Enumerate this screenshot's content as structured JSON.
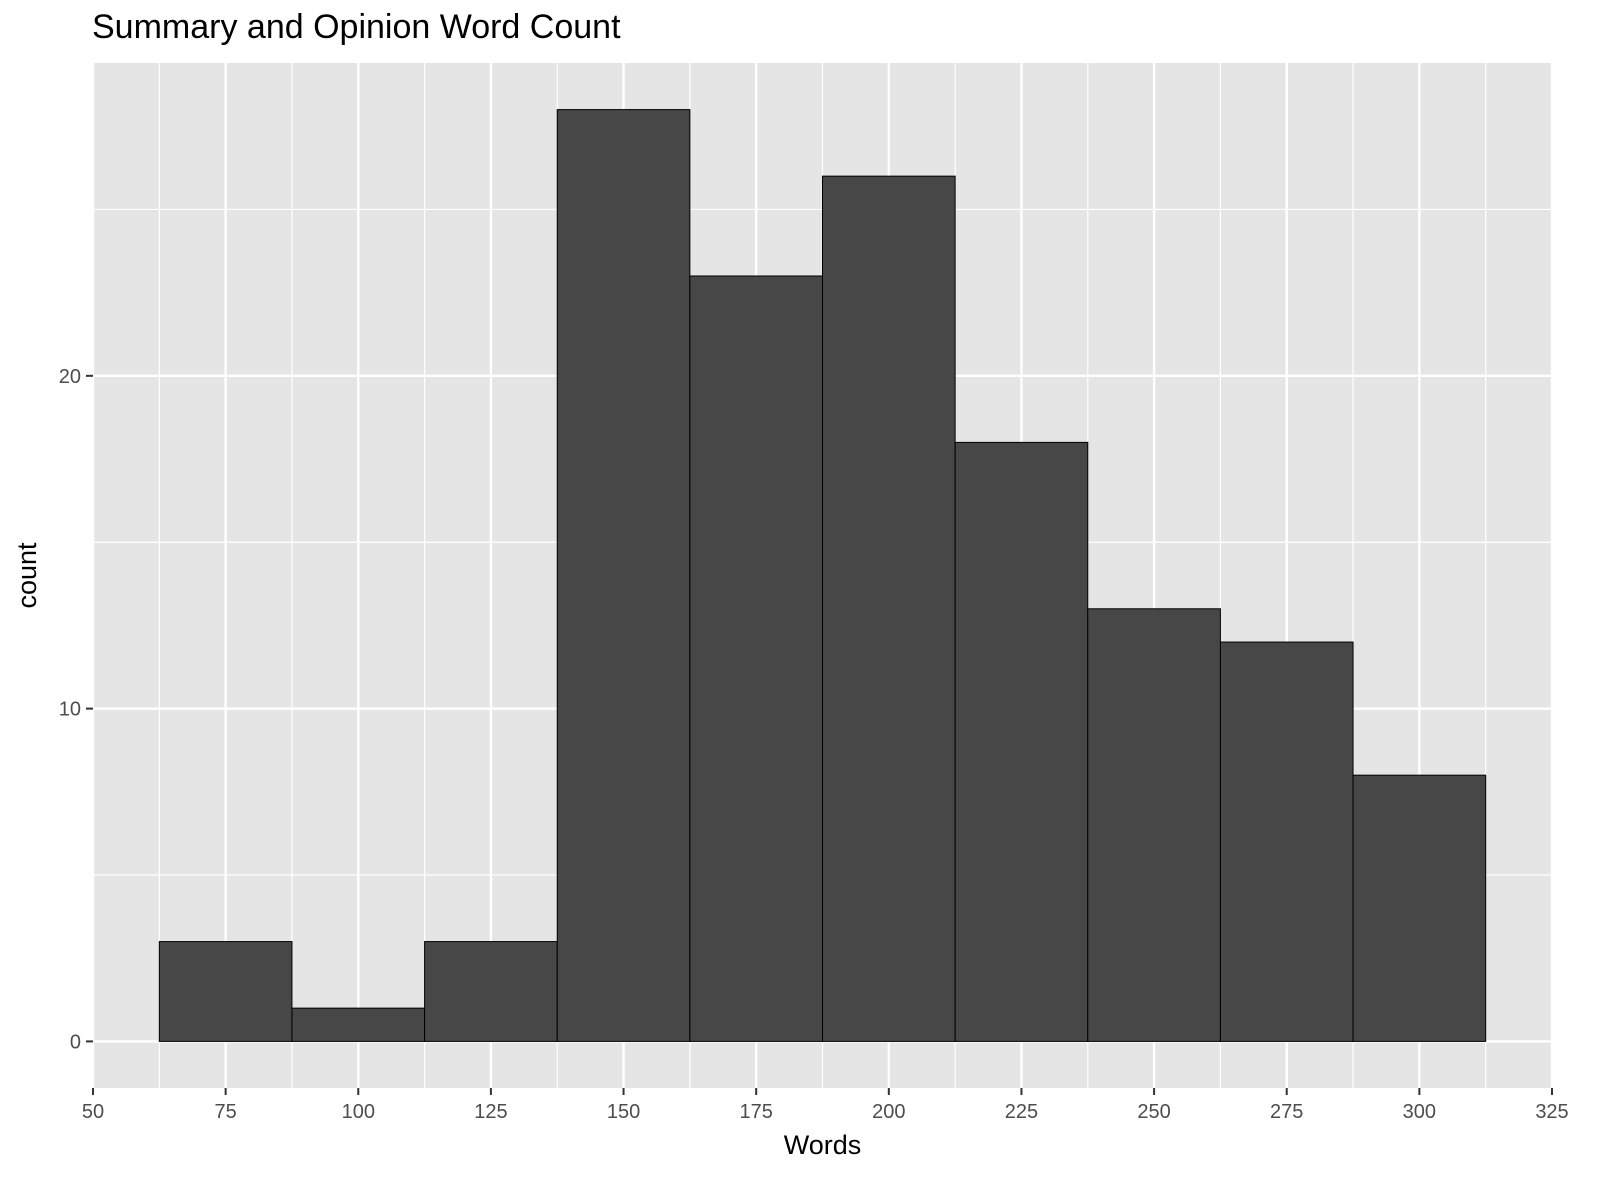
{
  "chart_data": {
    "type": "bar",
    "title": "Summary and Opinion Word Count",
    "xlabel": "Words",
    "ylabel": "count",
    "bin_width": 25,
    "bins": [
      {
        "x_start": 62.5,
        "x_end": 87.5,
        "count": 3
      },
      {
        "x_start": 87.5,
        "x_end": 112.5,
        "count": 1
      },
      {
        "x_start": 112.5,
        "x_end": 137.5,
        "count": 3
      },
      {
        "x_start": 137.5,
        "x_end": 162.5,
        "count": 28
      },
      {
        "x_start": 162.5,
        "x_end": 187.5,
        "count": 23
      },
      {
        "x_start": 187.5,
        "x_end": 212.5,
        "count": 26
      },
      {
        "x_start": 212.5,
        "x_end": 237.5,
        "count": 18
      },
      {
        "x_start": 237.5,
        "x_end": 262.5,
        "count": 13
      },
      {
        "x_start": 262.5,
        "x_end": 287.5,
        "count": 12
      },
      {
        "x_start": 287.5,
        "x_end": 312.5,
        "count": 8
      }
    ],
    "xlim": [
      50,
      325
    ],
    "ylim": [
      -1.4,
      29.4
    ],
    "x_ticks": [
      50,
      75,
      100,
      125,
      150,
      175,
      200,
      225,
      250,
      275,
      300,
      325
    ],
    "y_ticks": [
      0,
      10,
      20
    ],
    "grid": true,
    "colors": {
      "bar_fill": "#474747",
      "bar_outline": "#000000",
      "panel_background": "#e5e5e5",
      "gridline": "#ffffff"
    }
  }
}
